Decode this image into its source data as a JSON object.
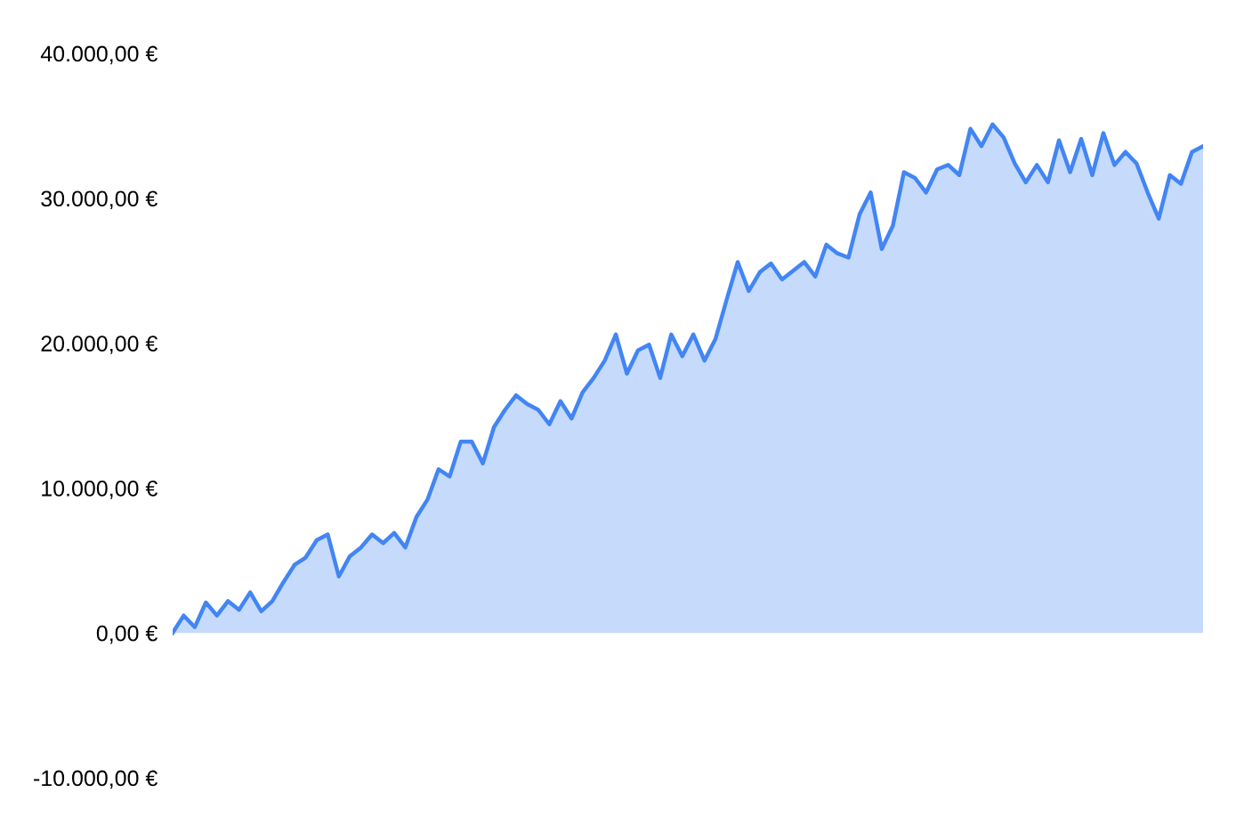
{
  "chart_data": {
    "type": "area",
    "categories": [
      null,
      null,
      null,
      null,
      null,
      null,
      null,
      null,
      null,
      null,
      null,
      null,
      null,
      null,
      null,
      null,
      null,
      null,
      null,
      null,
      null,
      null,
      null,
      null,
      null,
      null,
      null,
      null,
      null,
      null,
      null,
      null,
      null,
      null,
      null,
      null,
      null,
      null,
      null,
      null,
      null,
      null,
      null,
      null,
      null,
      null,
      null,
      null,
      null,
      null,
      null,
      null,
      null,
      null,
      null,
      null,
      null,
      null,
      null,
      null,
      null,
      null,
      null,
      null,
      null,
      null,
      null,
      null,
      null,
      null,
      null,
      null,
      null,
      null,
      null,
      null,
      null,
      null,
      null,
      null,
      null,
      null,
      null,
      null,
      null,
      null,
      null,
      null,
      null,
      null,
      null,
      null,
      null,
      null
    ],
    "series": [
      {
        "color": "#4285f4",
        "values": [
          0,
          1200,
          400,
          2100,
          1200,
          2200,
          1600,
          2800,
          1500,
          2200,
          3500,
          4700,
          5200,
          6400,
          6800,
          3900,
          5300,
          5900,
          6800,
          6200,
          6900,
          5900,
          8000,
          9200,
          11300,
          10800,
          13200,
          13200,
          11700,
          14200,
          15400,
          16400,
          15800,
          15400,
          14400,
          16000,
          14800,
          16600,
          17600,
          18800,
          20600,
          17900,
          19500,
          19900,
          17600,
          20600,
          19100,
          20600,
          18800,
          20300,
          23000,
          25600,
          23600,
          24900,
          25500,
          24400,
          25000,
          25600,
          24600,
          26800,
          26200,
          25900,
          28900,
          30400,
          26500,
          28100,
          31800,
          31400,
          30400,
          32000,
          32300,
          31600,
          34800,
          33600,
          35100,
          34200,
          32400,
          31100,
          32300,
          31100,
          34000,
          31800,
          34100,
          31600,
          34500,
          32300,
          33200,
          32400,
          30400,
          28600,
          31600,
          31000,
          33200,
          33600
        ]
      }
    ],
    "ylim": [
      -10000,
      40000
    ],
    "yticks": [
      {
        "value": -10000,
        "label": "-10.000,00 €"
      },
      {
        "value": 0,
        "label": "0,00 €"
      },
      {
        "value": 10000,
        "label": "10.000,00 €"
      },
      {
        "value": 20000,
        "label": "20.000,00 €"
      },
      {
        "value": 30000,
        "label": "30.000,00 €"
      },
      {
        "value": 40000,
        "label": "40.000,00 €"
      }
    ],
    "tick_labels": "y"
  }
}
